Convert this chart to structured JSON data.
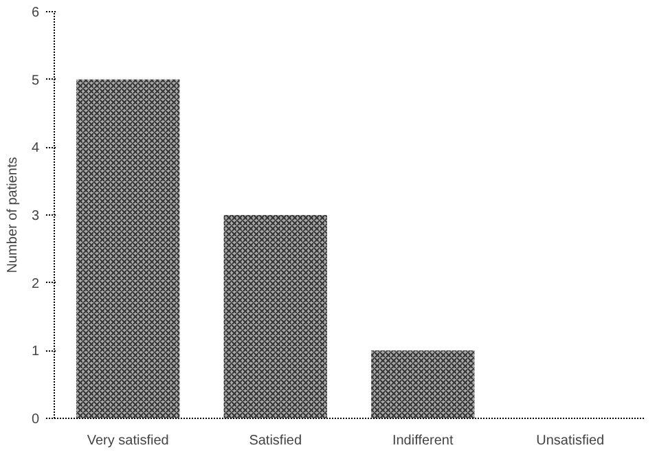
{
  "chart_data": {
    "type": "bar",
    "ylabel": "Number of patients",
    "categories": [
      "Very satisfied",
      "Satisfied",
      "Indifferent",
      "Unsatisfied"
    ],
    "values": [
      5,
      3,
      1,
      0
    ],
    "color": "#a8a8a8",
    "ylim": [
      0,
      6
    ],
    "yticks": [
      0,
      1,
      2,
      3,
      4,
      5,
      6
    ],
    "grid": false
  }
}
